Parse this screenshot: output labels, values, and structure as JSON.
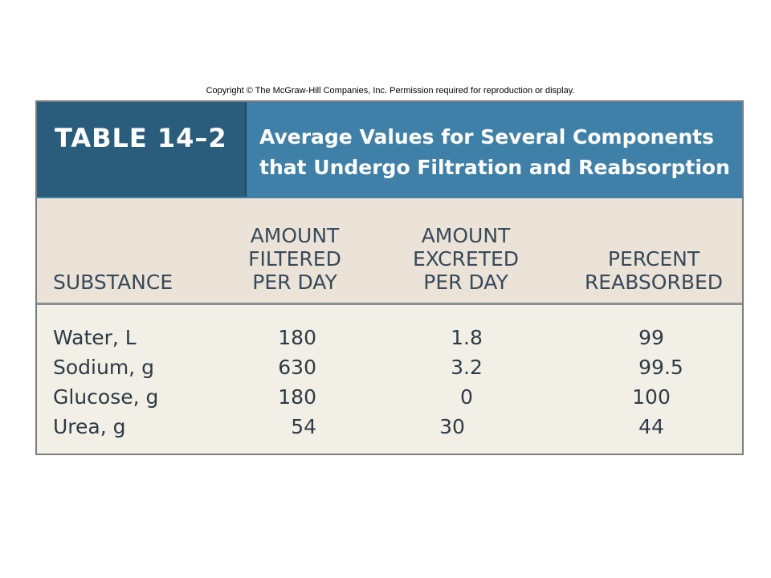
{
  "copyright": "Copyright © The McGraw-Hill Companies, Inc. Permission required for reproduction or display.",
  "table": {
    "number": "TABLE 14–2",
    "title_lines": [
      "Average Values for Several Components",
      "that Undergo Filtration and Reabsorption"
    ],
    "headers": {
      "substance": [
        "SUBSTANCE"
      ],
      "filtered": [
        "AMOUNT",
        "FILTERED",
        "PER DAY"
      ],
      "excreted": [
        "AMOUNT",
        "EXCRETED",
        "PER DAY"
      ],
      "percent": [
        "PERCENT",
        "REABSORBED"
      ]
    },
    "rows": [
      {
        "substance": "Water, L",
        "filtered": "180",
        "excreted": "1.8",
        "percent": "99"
      },
      {
        "substance": "Sodium, g",
        "filtered": "630",
        "excreted": "3.2",
        "percent": "99.5"
      },
      {
        "substance": "Glucose, g",
        "filtered": "180",
        "excreted": "0",
        "percent": "100"
      },
      {
        "substance": "Urea, g",
        "filtered": "54",
        "excreted": "30",
        "percent": "44"
      }
    ]
  },
  "colors": {
    "title_band": "#3f80a8",
    "title_number_band": "#2a5c7c",
    "header_band": "#ece3d8",
    "body_band": "#f2f0e6",
    "header_text": "#37495a",
    "body_text": "#2e3a45"
  }
}
